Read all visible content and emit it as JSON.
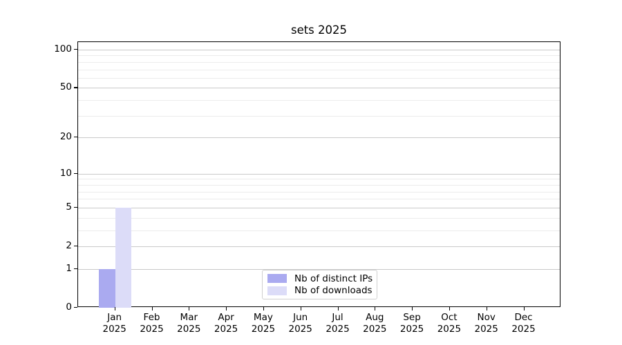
{
  "chart_data": {
    "type": "bar",
    "title": "sets 2025",
    "categories": [
      "Jan",
      "Feb",
      "Mar",
      "Apr",
      "May",
      "Jun",
      "Jul",
      "Aug",
      "Sep",
      "Oct",
      "Nov",
      "Dec"
    ],
    "category_sub_label": "2025",
    "series": [
      {
        "name": "Nb of distinct IPs",
        "color": "#aaaaf0",
        "values": [
          1,
          0,
          0,
          0,
          0,
          0,
          0,
          0,
          0,
          0,
          0,
          0
        ]
      },
      {
        "name": "Nb of downloads",
        "color": "#dcdcf8",
        "values": [
          5,
          0,
          0,
          0,
          0,
          0,
          0,
          0,
          0,
          0,
          0,
          0
        ]
      }
    ],
    "xlabel": "",
    "ylabel": "",
    "yscale": "log1p",
    "ylim": [
      0,
      115
    ],
    "yticks": [
      0,
      1,
      2,
      5,
      10,
      20,
      50,
      100
    ],
    "yticks_minor": [
      3,
      4,
      6,
      7,
      8,
      9,
      30,
      40,
      60,
      70,
      80,
      90
    ],
    "grid": "horizontal",
    "legend_position": "lower-center-inside"
  },
  "colors": {
    "background": "#ffffff",
    "spine": "#000000",
    "grid_major": "#c9c9c9",
    "grid_minor": "#ececec",
    "text": "#000000",
    "legend_border": "#cfcfcf"
  }
}
